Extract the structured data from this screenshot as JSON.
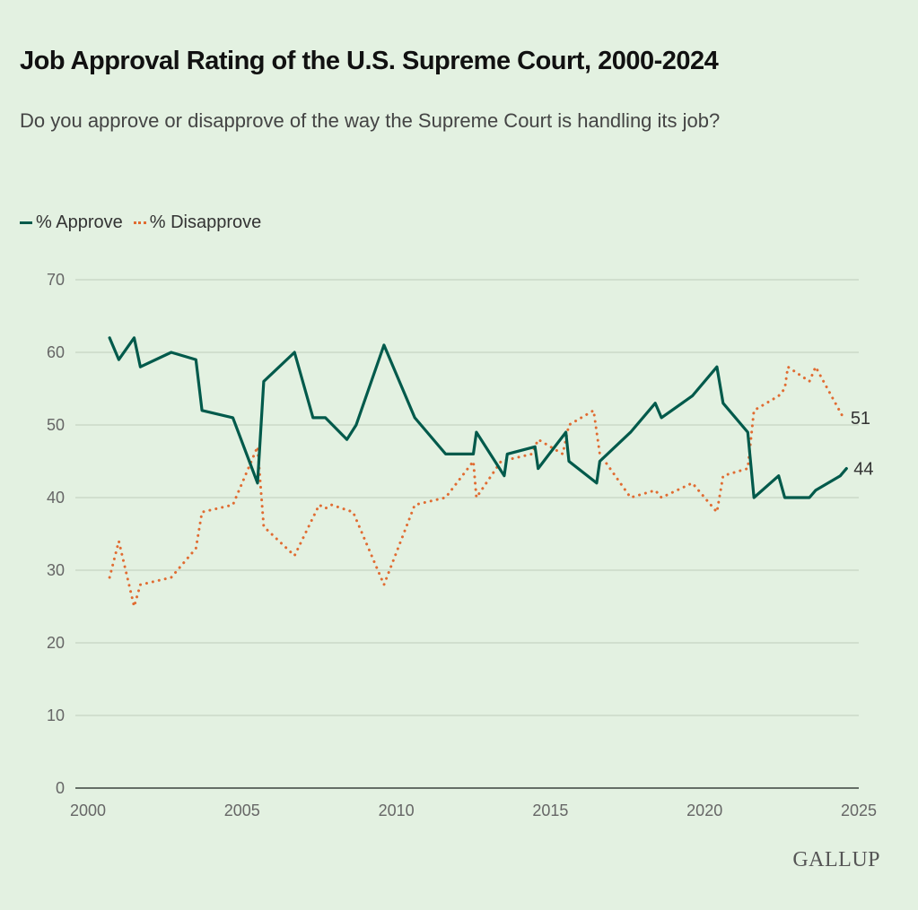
{
  "header": {
    "title": "Job Approval Rating of the U.S. Supreme Court, 2000-2024",
    "subtitle": "Do you approve or disapprove of the way the Supreme Court is handling its job?"
  },
  "legend": {
    "approve_label": "% Approve",
    "disapprove_label": "% Disapprove"
  },
  "footer": {
    "logo": "GALLUP"
  },
  "colors": {
    "approve": "#005a4b",
    "disapprove": "#e06c32",
    "background": "#e3f1e1"
  },
  "chart_data": {
    "type": "line",
    "title": "Job Approval Rating of the U.S. Supreme Court, 2000-2024",
    "subtitle": "Do you approve or disapprove of the way the Supreme Court is handling its job?",
    "xlabel": "",
    "ylabel": "",
    "xlim": [
      2000,
      2025
    ],
    "ylim": [
      0,
      70
    ],
    "x_ticks": [
      2000,
      2005,
      2010,
      2015,
      2020,
      2025
    ],
    "y_ticks": [
      0,
      10,
      20,
      30,
      40,
      50,
      60,
      70
    ],
    "grid": true,
    "legend_position": "top-left",
    "series": [
      {
        "name": "% Approve",
        "style": "solid",
        "end_label": "44",
        "points": [
          [
            2000.7,
            62
          ],
          [
            2001.0,
            59
          ],
          [
            2001.5,
            62
          ],
          [
            2001.7,
            58
          ],
          [
            2002.7,
            60
          ],
          [
            2003.5,
            59
          ],
          [
            2003.7,
            52
          ],
          [
            2004.7,
            51
          ],
          [
            2005.5,
            42
          ],
          [
            2005.7,
            56
          ],
          [
            2006.7,
            60
          ],
          [
            2007.3,
            51
          ],
          [
            2007.7,
            51
          ],
          [
            2008.4,
            48
          ],
          [
            2008.7,
            50
          ],
          [
            2009.6,
            61
          ],
          [
            2010.6,
            51
          ],
          [
            2011.6,
            46
          ],
          [
            2012.5,
            46
          ],
          [
            2012.6,
            49
          ],
          [
            2013.5,
            43
          ],
          [
            2013.6,
            46
          ],
          [
            2014.5,
            47
          ],
          [
            2014.6,
            44
          ],
          [
            2015.5,
            49
          ],
          [
            2015.6,
            45
          ],
          [
            2016.5,
            42
          ],
          [
            2016.6,
            45
          ],
          [
            2017.6,
            49
          ],
          [
            2018.4,
            53
          ],
          [
            2018.6,
            51
          ],
          [
            2019.6,
            54
          ],
          [
            2020.4,
            58
          ],
          [
            2020.6,
            53
          ],
          [
            2021.4,
            49
          ],
          [
            2021.6,
            40
          ],
          [
            2022.4,
            43
          ],
          [
            2022.6,
            40
          ],
          [
            2023.4,
            40
          ],
          [
            2023.6,
            41
          ],
          [
            2024.4,
            43
          ],
          [
            2024.6,
            44
          ]
        ]
      },
      {
        "name": "% Disapprove",
        "style": "dotted",
        "end_label": "51",
        "points": [
          [
            2000.7,
            29
          ],
          [
            2001.0,
            34
          ],
          [
            2001.5,
            25
          ],
          [
            2001.7,
            28
          ],
          [
            2002.7,
            29
          ],
          [
            2003.5,
            33
          ],
          [
            2003.7,
            38
          ],
          [
            2004.7,
            39
          ],
          [
            2005.5,
            47
          ],
          [
            2005.7,
            36
          ],
          [
            2006.7,
            32
          ],
          [
            2007.5,
            39
          ],
          [
            2007.7,
            38.5
          ],
          [
            2007.9,
            39
          ],
          [
            2008.6,
            38
          ],
          [
            2009.6,
            28
          ],
          [
            2010.6,
            39
          ],
          [
            2011.6,
            40
          ],
          [
            2012.5,
            45
          ],
          [
            2012.6,
            40
          ],
          [
            2013.4,
            45
          ],
          [
            2014.4,
            46
          ],
          [
            2014.6,
            48
          ],
          [
            2015.4,
            46
          ],
          [
            2015.6,
            50
          ],
          [
            2016.4,
            52
          ],
          [
            2016.6,
            46
          ],
          [
            2017.6,
            40
          ],
          [
            2018.4,
            41
          ],
          [
            2018.6,
            40
          ],
          [
            2019.6,
            42
          ],
          [
            2020.4,
            38
          ],
          [
            2020.6,
            43
          ],
          [
            2021.4,
            44
          ],
          [
            2021.6,
            52
          ],
          [
            2022.4,
            54
          ],
          [
            2022.6,
            55
          ],
          [
            2022.7,
            58
          ],
          [
            2023.4,
            56
          ],
          [
            2023.6,
            58
          ],
          [
            2024.5,
            51
          ]
        ]
      }
    ]
  }
}
